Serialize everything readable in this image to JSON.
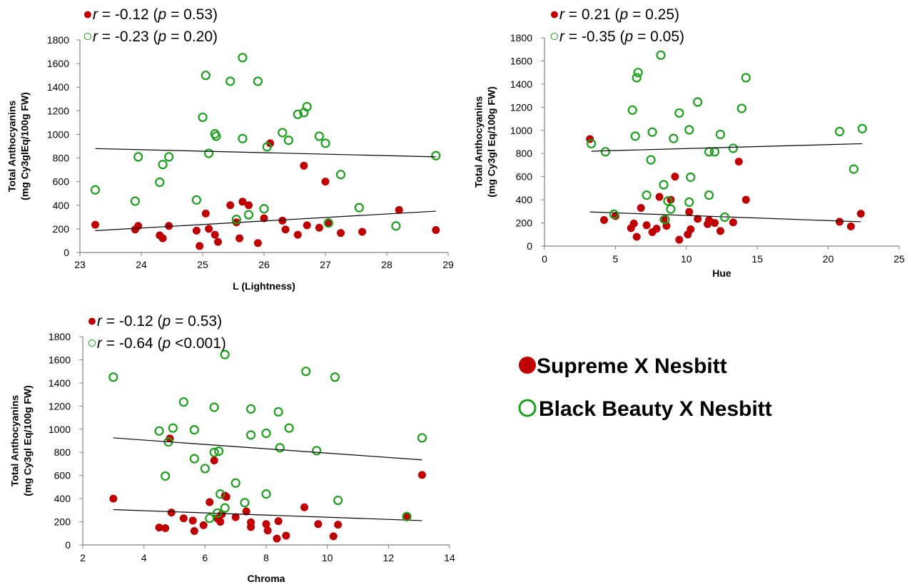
{
  "colors": {
    "supreme": "#c00000",
    "black_beauty": "#1aa01a",
    "trend": "#000000"
  },
  "legend": {
    "entries": [
      {
        "label": "Supreme X Nesbitt",
        "marker": "filled-circle",
        "color": "#c00000"
      },
      {
        "label": "Black Beauty X Nesbitt",
        "marker": "open-circle",
        "color": "#1aa01a"
      }
    ]
  },
  "chart_data": [
    {
      "type": "scatter",
      "xlabel": "L (Lightness)",
      "ylabel_lines": [
        "Total Anthocyanins",
        "(mg Cy3glEq/100g  FW)"
      ],
      "xlim": [
        23,
        29
      ],
      "ylim": [
        0,
        1800
      ],
      "xticks": [
        "23",
        "24",
        "25",
        "26",
        "27",
        "28",
        "29"
      ],
      "yticks": [
        "0",
        "200",
        "400",
        "600",
        "800",
        "1000",
        "1200",
        "1400",
        "1600",
        "1800"
      ],
      "annotations": [
        {
          "r": "-0.12",
          "p": "0.53"
        },
        {
          "r": "-0.23",
          "p": "0.20"
        }
      ],
      "series": [
        {
          "name": "Supreme X Nesbitt",
          "marker": "filled",
          "points": [
            [
              23.25,
              235
            ],
            [
              23.9,
              195
            ],
            [
              23.95,
              225
            ],
            [
              24.3,
              145
            ],
            [
              24.35,
              120
            ],
            [
              24.45,
              225
            ],
            [
              24.9,
              185
            ],
            [
              24.95,
              55
            ],
            [
              25.05,
              330
            ],
            [
              25.1,
              200
            ],
            [
              25.2,
              150
            ],
            [
              25.25,
              90
            ],
            [
              25.45,
              400
            ],
            [
              25.55,
              255
            ],
            [
              25.6,
              120
            ],
            [
              25.65,
              430
            ],
            [
              25.75,
              400
            ],
            [
              25.9,
              80
            ],
            [
              26.0,
              290
            ],
            [
              26.1,
              925
            ],
            [
              26.3,
              270
            ],
            [
              26.35,
              195
            ],
            [
              26.55,
              150
            ],
            [
              26.65,
              735
            ],
            [
              26.7,
              230
            ],
            [
              26.9,
              210
            ],
            [
              27.0,
              600
            ],
            [
              27.05,
              245
            ],
            [
              27.25,
              165
            ],
            [
              27.6,
              175
            ],
            [
              28.2,
              360
            ],
            [
              28.8,
              190
            ]
          ],
          "trend": [
            [
              23.25,
              185
            ],
            [
              28.8,
              350
            ]
          ]
        },
        {
          "name": "Black Beauty X Nesbitt",
          "marker": "open",
          "points": [
            [
              23.25,
              530
            ],
            [
              23.9,
              435
            ],
            [
              23.95,
              810
            ],
            [
              24.3,
              595
            ],
            [
              24.35,
              745
            ],
            [
              24.45,
              810
            ],
            [
              24.9,
              445
            ],
            [
              25.0,
              1145
            ],
            [
              25.05,
              1500
            ],
            [
              25.1,
              840
            ],
            [
              25.2,
              1005
            ],
            [
              25.22,
              985
            ],
            [
              25.45,
              1450
            ],
            [
              25.55,
              280
            ],
            [
              25.65,
              1650
            ],
            [
              25.65,
              965
            ],
            [
              25.75,
              320
            ],
            [
              25.9,
              1450
            ],
            [
              26.0,
              370
            ],
            [
              26.05,
              895
            ],
            [
              26.3,
              1015
            ],
            [
              26.4,
              950
            ],
            [
              26.55,
              1170
            ],
            [
              26.65,
              1185
            ],
            [
              26.7,
              1235
            ],
            [
              26.9,
              985
            ],
            [
              27.0,
              925
            ],
            [
              27.05,
              250
            ],
            [
              27.25,
              660
            ],
            [
              27.55,
              380
            ],
            [
              28.15,
              225
            ],
            [
              28.8,
              820
            ]
          ],
          "trend": [
            [
              23.25,
              880
            ],
            [
              28.8,
              810
            ]
          ]
        }
      ]
    },
    {
      "type": "scatter",
      "xlabel": "Hue",
      "ylabel_lines": [
        "Total Anthocyanins",
        "(mg Cy3gl Eq/100g  FW)"
      ],
      "xlim": [
        0,
        25
      ],
      "ylim": [
        0,
        1800
      ],
      "xticks": [
        "0",
        "5",
        "10",
        "15",
        "20",
        "25"
      ],
      "yticks": [
        "0",
        "200",
        "400",
        "600",
        "800",
        "1000",
        "1200",
        "1400",
        "1600",
        "1800"
      ],
      "annotations": [
        {
          "r": "0.21",
          "p": "0.25"
        },
        {
          "r": "-0.35",
          "p": "0.05"
        }
      ],
      "series": [
        {
          "name": "Supreme X Nesbitt",
          "marker": "filled",
          "points": [
            [
              3.2,
              925
            ],
            [
              4.2,
              225
            ],
            [
              5.0,
              260
            ],
            [
              6.1,
              155
            ],
            [
              6.3,
              195
            ],
            [
              6.5,
              80
            ],
            [
              6.8,
              330
            ],
            [
              7.2,
              180
            ],
            [
              7.6,
              120
            ],
            [
              7.9,
              150
            ],
            [
              8.1,
              425
            ],
            [
              8.4,
              230
            ],
            [
              8.6,
              175
            ],
            [
              8.9,
              400
            ],
            [
              9.2,
              600
            ],
            [
              9.5,
              55
            ],
            [
              10.2,
              295
            ],
            [
              10.1,
              100
            ],
            [
              10.3,
              145
            ],
            [
              10.8,
              235
            ],
            [
              11.6,
              225
            ],
            [
              11.5,
              190
            ],
            [
              12.0,
              200
            ],
            [
              12.4,
              130
            ],
            [
              13.3,
              205
            ],
            [
              13.7,
              730
            ],
            [
              14.2,
              400
            ],
            [
              20.8,
              210
            ],
            [
              21.6,
              170
            ],
            [
              22.3,
              280
            ]
          ],
          "trend": [
            [
              3.2,
              295
            ],
            [
              22.3,
              210
            ]
          ]
        },
        {
          "name": "Black Beauty X Nesbitt",
          "marker": "open",
          "points": [
            [
              3.3,
              885
            ],
            [
              4.3,
              815
            ],
            [
              4.9,
              275
            ],
            [
              6.2,
              1175
            ],
            [
              6.4,
              950
            ],
            [
              6.5,
              1455
            ],
            [
              6.6,
              1500
            ],
            [
              7.2,
              440
            ],
            [
              7.5,
              745
            ],
            [
              7.6,
              985
            ],
            [
              8.2,
              1650
            ],
            [
              8.4,
              530
            ],
            [
              8.5,
              230
            ],
            [
              8.7,
              390
            ],
            [
              8.9,
              320
            ],
            [
              9.1,
              930
            ],
            [
              9.5,
              1150
            ],
            [
              10.2,
              1005
            ],
            [
              10.2,
              380
            ],
            [
              10.3,
              595
            ],
            [
              10.8,
              1245
            ],
            [
              11.6,
              815
            ],
            [
              11.6,
              440
            ],
            [
              12.0,
              815
            ],
            [
              12.4,
              965
            ],
            [
              12.7,
              250
            ],
            [
              13.3,
              845
            ],
            [
              13.9,
              1190
            ],
            [
              14.2,
              1455
            ],
            [
              20.8,
              990
            ],
            [
              21.8,
              665
            ],
            [
              22.4,
              1015
            ]
          ],
          "trend": [
            [
              3.3,
              820
            ],
            [
              22.4,
              885
            ]
          ]
        }
      ]
    },
    {
      "type": "scatter",
      "xlabel": "Chroma",
      "ylabel_lines": [
        "Total Anthocyanins",
        "(mg Cy3gl Eq/100g  FW)"
      ],
      "xlim": [
        2,
        14
      ],
      "ylim": [
        0,
        1800
      ],
      "xticks": [
        "2",
        "4",
        "6",
        "8",
        "10",
        "12",
        "14"
      ],
      "yticks": [
        "0",
        "200",
        "400",
        "600",
        "800",
        "1000",
        "1200",
        "1400",
        "1600",
        "1800"
      ],
      "annotations": [
        {
          "r": "-0.12",
          "p": "= 0.53"
        },
        {
          "r": "-0.64",
          "p": "<0.001"
        }
      ],
      "series": [
        {
          "name": "Supreme X Nesbitt",
          "marker": "filled",
          "points": [
            [
              3.0,
              400
            ],
            [
              4.5,
              150
            ],
            [
              4.7,
              145
            ],
            [
              4.85,
              920
            ],
            [
              4.9,
              280
            ],
            [
              5.3,
              230
            ],
            [
              5.6,
              210
            ],
            [
              5.65,
              120
            ],
            [
              5.95,
              170
            ],
            [
              6.15,
              370
            ],
            [
              6.3,
              730
            ],
            [
              6.4,
              230
            ],
            [
              6.5,
              200
            ],
            [
              6.55,
              265
            ],
            [
              6.65,
              425
            ],
            [
              6.7,
              415
            ],
            [
              7.0,
              240
            ],
            [
              7.35,
              290
            ],
            [
              7.5,
              195
            ],
            [
              7.5,
              155
            ],
            [
              8.0,
              180
            ],
            [
              8.05,
              125
            ],
            [
              8.35,
              55
            ],
            [
              8.4,
              205
            ],
            [
              8.65,
              80
            ],
            [
              9.25,
              325
            ],
            [
              9.7,
              180
            ],
            [
              10.2,
              75
            ],
            [
              10.35,
              175
            ],
            [
              12.6,
              240
            ],
            [
              13.1,
              605
            ]
          ],
          "trend": [
            [
              3.0,
              305
            ],
            [
              13.1,
              210
            ]
          ]
        },
        {
          "name": "Black Beauty X Nesbitt",
          "marker": "open",
          "points": [
            [
              3.0,
              1450
            ],
            [
              4.5,
              985
            ],
            [
              4.8,
              890
            ],
            [
              4.95,
              1010
            ],
            [
              4.7,
              595
            ],
            [
              5.3,
              1235
            ],
            [
              5.65,
              995
            ],
            [
              5.65,
              745
            ],
            [
              6.0,
              660
            ],
            [
              6.15,
              230
            ],
            [
              6.3,
              1190
            ],
            [
              6.3,
              800
            ],
            [
              6.45,
              810
            ],
            [
              6.4,
              275
            ],
            [
              6.5,
              440
            ],
            [
              6.65,
              1645
            ],
            [
              6.65,
              320
            ],
            [
              7.0,
              535
            ],
            [
              7.3,
              365
            ],
            [
              7.5,
              1175
            ],
            [
              7.5,
              950
            ],
            [
              8.0,
              965
            ],
            [
              8.0,
              440
            ],
            [
              8.4,
              1150
            ],
            [
              8.45,
              840
            ],
            [
              8.75,
              1010
            ],
            [
              9.3,
              1500
            ],
            [
              9.65,
              815
            ],
            [
              10.25,
              1450
            ],
            [
              10.35,
              385
            ],
            [
              12.6,
              245
            ],
            [
              13.1,
              925
            ]
          ],
          "trend": [
            [
              3.0,
              925
            ],
            [
              13.1,
              735
            ]
          ]
        }
      ]
    }
  ]
}
